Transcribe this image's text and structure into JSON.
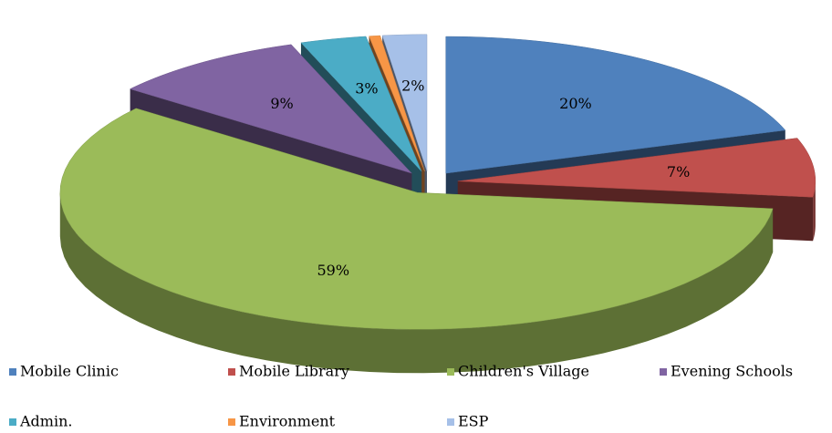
{
  "chart_data": {
    "type": "pie3d",
    "categories": [
      "Mobile Clinic",
      "Mobile Library",
      "Children's Village",
      "Evening Schools",
      "Admin.",
      "Environment",
      "ESP"
    ],
    "values": [
      20,
      7,
      59,
      9,
      3,
      0.5,
      2
    ],
    "value_labels": [
      "20%",
      "7%",
      "59%",
      "9%",
      "3%",
      null,
      "2%"
    ],
    "colors": [
      "#4f81bd",
      "#c0504d",
      "#9bbb59",
      "#8064a2",
      "#4bacc6",
      "#f79646",
      "#a6c0e8"
    ],
    "legend": "bottom"
  }
}
